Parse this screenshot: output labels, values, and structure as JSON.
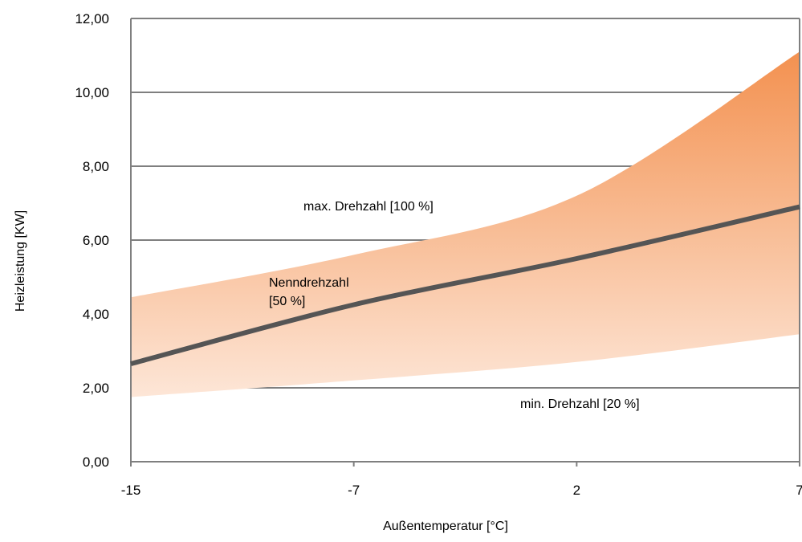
{
  "chart_data": {
    "type": "area",
    "xlabel": "Außentemperatur [°C]",
    "ylabel": "Heizleistung [KW]",
    "categories": [
      "-15",
      "-7",
      "2",
      "7"
    ],
    "ylim": [
      0,
      12
    ],
    "yticks": [
      "0,00",
      "2,00",
      "4,00",
      "6,00",
      "8,00",
      "10,00",
      "12,00"
    ],
    "grid": true,
    "series": [
      {
        "name": "max. Drehzahl [100 %]",
        "values": [
          4.45,
          5.6,
          7.2,
          11.1
        ],
        "role": "band-upper"
      },
      {
        "name": "Nenndrehzahl [50 %]",
        "values": [
          2.65,
          4.25,
          5.5,
          6.9
        ],
        "role": "line"
      },
      {
        "name": "min. Drehzahl [20 %]",
        "values": [
          1.75,
          2.2,
          2.7,
          3.45
        ],
        "role": "band-lower"
      }
    ],
    "annotations": {
      "max": "max. Drehzahl [100 %]",
      "nominal_line1": "Nenndrehzahl",
      "nominal_line2": "[50 %]",
      "min": "min. Drehzahl [20 %]"
    },
    "colors": {
      "band_top": "#f39150",
      "band_bottom": "#fde6d7",
      "line": "#555555",
      "grid": "#7f7f7f"
    }
  }
}
